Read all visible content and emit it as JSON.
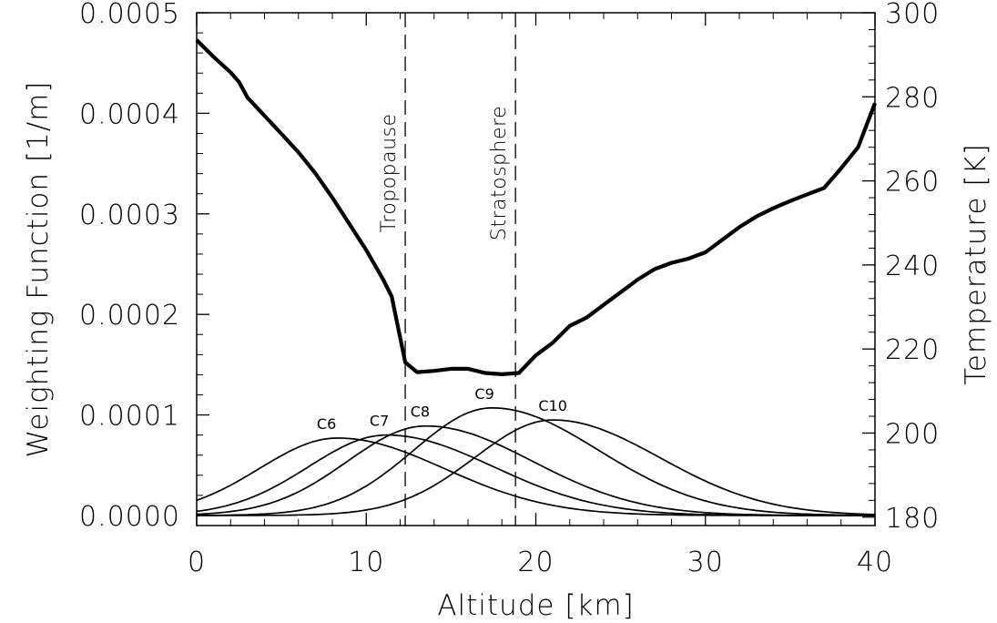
{
  "chart_data": {
    "type": "line",
    "title": "",
    "xlabel": "Altitude [km]",
    "ylabel_left": "Weighting Function [1/m]",
    "ylabel_right": "Temperature [K]",
    "xlim": [
      0,
      40
    ],
    "ylim_left": [
      -1e-05,
      0.0005
    ],
    "ylim_right": [
      178,
      300
    ],
    "x_ticks": [
      "0",
      "10",
      "20",
      "30",
      "40"
    ],
    "y_left_ticks": [
      "0.0000",
      "0.0001",
      "0.0002",
      "0.0003",
      "0.0004",
      "0.0005"
    ],
    "y_right_ticks": [
      "180",
      "200",
      "220",
      "240",
      "260",
      "280",
      "300"
    ],
    "grid": false,
    "legend": "none",
    "annotations": [
      {
        "text": "Tropopause",
        "x": 12.3
      },
      {
        "text": "Stratosphere",
        "x": 18.8
      }
    ],
    "temperature_series": {
      "x": [
        0,
        1,
        2,
        2.5,
        3,
        4,
        5,
        6,
        7,
        8,
        9,
        10,
        11,
        11.5,
        12.3,
        13,
        14,
        15,
        16,
        17,
        18,
        19,
        20,
        21,
        22,
        23,
        24,
        25,
        26,
        27,
        28,
        29,
        30,
        31,
        32,
        33,
        34,
        35,
        36,
        37,
        38,
        39,
        40
      ],
      "y": [
        293.5,
        289.5,
        285.8,
        283.5,
        279.8,
        275.5,
        271.2,
        266.8,
        261.8,
        256,
        249.8,
        243.5,
        236.5,
        232.5,
        216.8,
        214.5,
        214.8,
        215.3,
        215.3,
        214.3,
        214.0,
        214.3,
        218.5,
        221.5,
        225.5,
        227.5,
        230.5,
        233.5,
        236.5,
        239,
        240.5,
        241.5,
        243,
        246,
        249,
        251.5,
        253.5,
        255.2,
        256.8,
        258.3,
        263,
        268,
        278.5
      ]
    },
    "weighting_series": [
      {
        "name": "C6",
        "peak_x": 8.3,
        "peak": 7.7e-05
      },
      {
        "name": "C7",
        "peak_x": 11.2,
        "peak": 8e-05
      },
      {
        "name": "C8",
        "peak_x": 13.5,
        "peak": 8.9e-05
      },
      {
        "name": "C9",
        "peak_x": 17.4,
        "peak": 0.000107
      },
      {
        "name": "C10",
        "peak_x": 21.0,
        "peak": 9.5e-05
      }
    ]
  }
}
